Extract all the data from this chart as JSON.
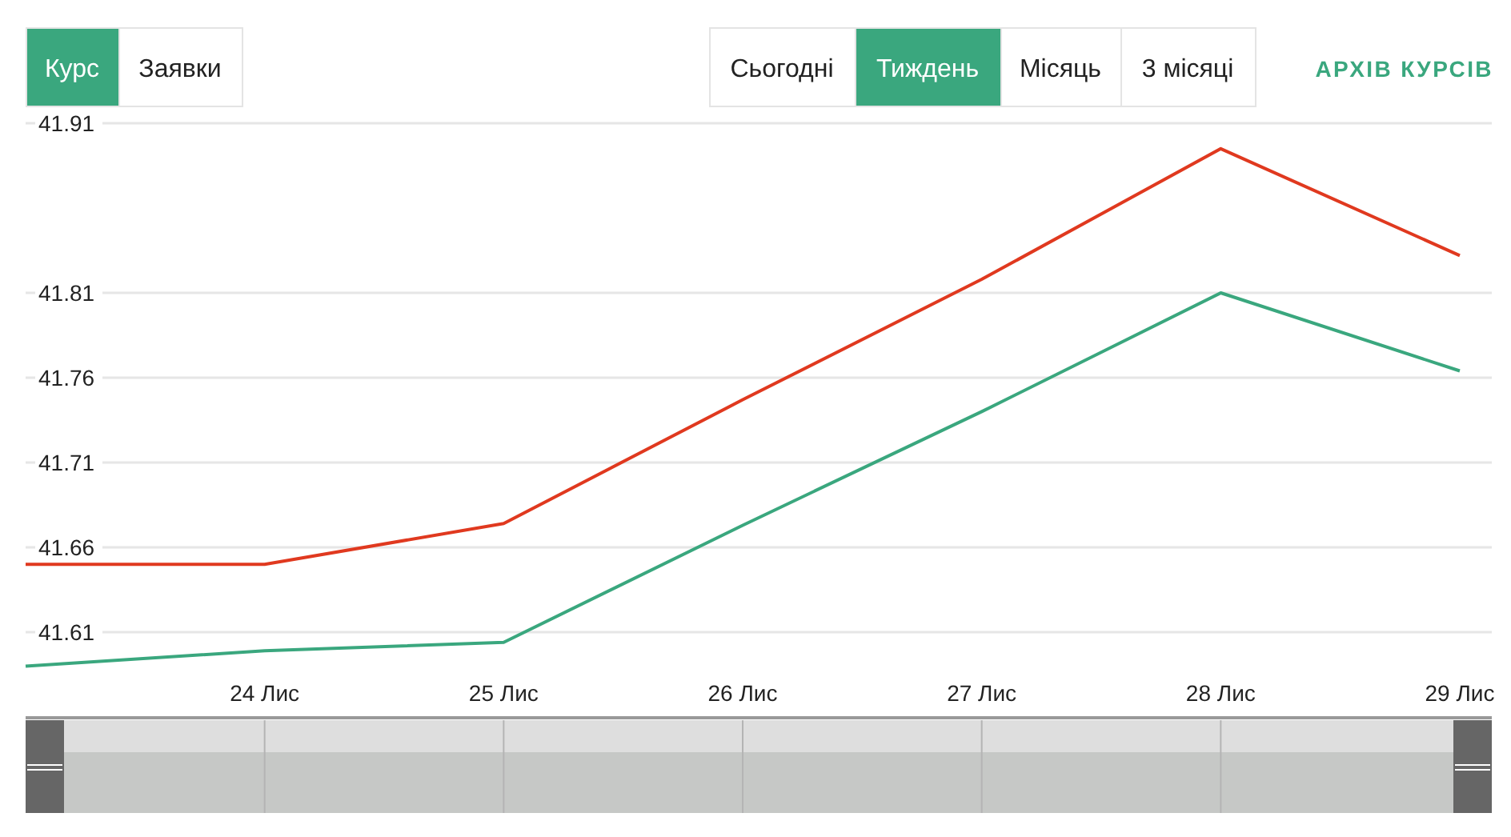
{
  "chart_data": {
    "type": "line",
    "categories": [
      null,
      "24 Лис",
      "25 Лис",
      "26 Лис",
      "27 Лис",
      "28 Лис",
      "29 Лис"
    ],
    "series": [
      {
        "color": "#e0391f",
        "values": [
          41.65,
          41.65,
          41.674,
          41.747,
          41.818,
          41.895,
          41.832
        ]
      },
      {
        "color": "#3aa77e",
        "values": [
          41.59,
          41.599,
          41.604,
          41.673,
          41.74,
          41.81,
          41.764
        ]
      }
    ],
    "ylim": [
      41.56,
      41.91
    ],
    "yticks": [
      41.61,
      41.66,
      41.71,
      41.76,
      41.81,
      41.91
    ],
    "grid": "y",
    "marker": "none",
    "line_style": "solid",
    "annotations": [
      "Курс",
      "Заявки",
      "Сьогодні",
      "Тиждень",
      "Місяць",
      "3 місяці",
      "АРХІВ КУРСІВ"
    ]
  }
}
